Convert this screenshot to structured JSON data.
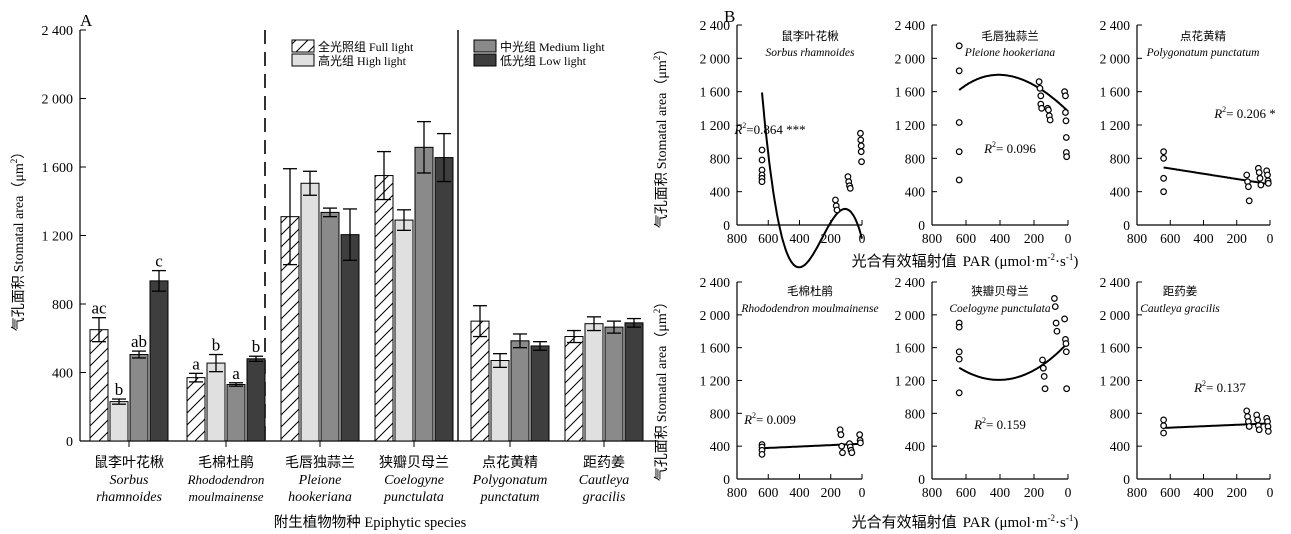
{
  "panel_a": {
    "letter": "A",
    "ylabel_cn": "气孔面积",
    "ylabel_en": "Stomatal area",
    "ylabel_unit": "（μm",
    "ylabel_unit_sup": "2",
    "ylabel_unit_close": "）",
    "xlabel": "附生植物物种 Epiphytic species",
    "yticks": [
      "0",
      "400",
      "800",
      "1 200",
      "1 600",
      "2 000",
      "2 400"
    ],
    "legend": {
      "full": "全光照组 Full light",
      "high": "高光组 High light",
      "medium": "中光组 Medium light",
      "low": "低光组 Low light"
    },
    "species": [
      {
        "cn": "鼠李叶花楸",
        "latin1": "Sorbus",
        "latin2": "rhamnoides"
      },
      {
        "cn": "毛棉杜鹃",
        "latin1": "Rhododendron",
        "latin2": "moulmainense"
      },
      {
        "cn": "毛唇独蒜兰",
        "latin1": "Pleione",
        "latin2": "hookeriana"
      },
      {
        "cn": "狭瓣贝母兰",
        "latin1": "Coelogyne",
        "latin2": "punctulata"
      },
      {
        "cn": "点花黄精",
        "latin1": "Polygonatum",
        "latin2": "punctatum"
      },
      {
        "cn": "距药姜",
        "latin1": "Cautleya",
        "latin2": "gracilis"
      }
    ],
    "sig_letters": [
      [
        "ac",
        "b",
        "ab",
        "c"
      ],
      [
        "a",
        "b",
        "a",
        "b"
      ]
    ]
  },
  "panel_b": {
    "letter": "B",
    "ylabel_cn": "气孔面积",
    "ylabel_en": "Stomatal area",
    "ylabel_unit": "（μm",
    "ylabel_unit_sup": "2",
    "ylabel_unit_close": "）",
    "xlabel_cn": "光合有效辐射值",
    "xlabel_en": "PAR",
    "xlabel_unit": "(μmol·m",
    "xlabel_sup1": "-2",
    "xlabel_mid": "·s",
    "xlabel_sup2": "-1",
    "xlabel_close": ")",
    "xticks": [
      "800",
      "600",
      "400",
      "200",
      "0"
    ],
    "yticks": [
      "0",
      "400",
      "800",
      "1 200",
      "1 600",
      "2 000",
      "2 400"
    ],
    "panels": [
      {
        "cn": "鼠李叶花楸",
        "latin": "Sorbus rhamnoides",
        "r2": "=0.864 ***"
      },
      {
        "cn": "毛唇独蒜兰",
        "latin": "Pleione hookeriana",
        "r2": "= 0.096"
      },
      {
        "cn": "点花黄精",
        "latin": "Polygonatum punctatum",
        "r2": "= 0.206 *"
      },
      {
        "cn": "毛棉杜鹃",
        "latin": "Rhododendron moulmainense",
        "r2": "= 0.009"
      },
      {
        "cn": "狭瓣贝母兰",
        "latin": "Coelogyne punctulata",
        "r2": "= 0.159"
      },
      {
        "cn": "距药姜",
        "latin": "Cautleya gracilis",
        "r2": "= 0.137"
      }
    ]
  },
  "chart_data": [
    {
      "type": "bar",
      "ylim": [
        0,
        2400
      ],
      "categories": [
        "鼠李叶花楸 Sorbus rhamnoides",
        "毛棉杜鹃 Rhododendron moulmainense",
        "毛唇独蒜兰 Pleione hookeriana",
        "狭瓣贝母兰 Coelogyne punctulata",
        "点花黄精 Polygonatum punctatum",
        "距药姜 Cautleya gracilis"
      ],
      "series": [
        {
          "name": "全光照组 Full light",
          "values": [
            650,
            370,
            1310,
            1550,
            700,
            610
          ],
          "errors": [
            70,
            25,
            280,
            140,
            90,
            35
          ]
        },
        {
          "name": "高光组 High light",
          "values": [
            230,
            455,
            1505,
            1290,
            470,
            685
          ],
          "errors": [
            15,
            50,
            70,
            60,
            40,
            40
          ]
        },
        {
          "name": "中光组 Medium light",
          "values": [
            505,
            330,
            1335,
            1715,
            585,
            665
          ],
          "errors": [
            20,
            10,
            25,
            150,
            40,
            35
          ]
        },
        {
          "name": "低光组 Low light",
          "values": [
            935,
            480,
            1205,
            1655,
            555,
            690
          ],
          "errors": [
            60,
            15,
            150,
            140,
            25,
            25
          ]
        }
      ]
    },
    {
      "type": "scatter",
      "xlim": [
        800,
        0
      ],
      "ylim": [
        0,
        2400
      ],
      "points": [
        [
          640,
          900
        ],
        [
          640,
          780
        ],
        [
          640,
          660
        ],
        [
          640,
          600
        ],
        [
          640,
          560
        ],
        [
          640,
          520
        ],
        [
          170,
          300
        ],
        [
          165,
          230
        ],
        [
          160,
          180
        ],
        [
          90,
          580
        ],
        [
          85,
          520
        ],
        [
          80,
          470
        ],
        [
          75,
          440
        ],
        [
          10,
          1100
        ],
        [
          8,
          1020
        ],
        [
          5,
          950
        ],
        [
          5,
          880
        ],
        [
          3,
          760
        ]
      ],
      "fit": {
        "coef": [
          -163.63,
          7.2133,
          -0.04217,
          5.497e-05
        ],
        "r2": 0.864
      }
    },
    {
      "type": "scatter",
      "xlim": [
        800,
        0
      ],
      "ylim": [
        0,
        2400
      ],
      "points": [
        [
          640,
          2150
        ],
        [
          640,
          1850
        ],
        [
          640,
          1230
        ],
        [
          640,
          880
        ],
        [
          640,
          540
        ],
        [
          170,
          1720
        ],
        [
          165,
          1640
        ],
        [
          160,
          1550
        ],
        [
          160,
          1450
        ],
        [
          155,
          1400
        ],
        [
          120,
          1400
        ],
        [
          115,
          1380
        ],
        [
          110,
          1310
        ],
        [
          105,
          1260
        ],
        [
          20,
          1600
        ],
        [
          15,
          1550
        ],
        [
          15,
          1350
        ],
        [
          12,
          1250
        ],
        [
          10,
          1050
        ],
        [
          10,
          870
        ],
        [
          8,
          820
        ]
      ],
      "fit": {
        "coef": [
          1364.6,
          1.95,
          -0.00167,
          -1.18e-06
        ],
        "r2": 0.096
      }
    },
    {
      "type": "scatter",
      "xlim": [
        800,
        0
      ],
      "ylim": [
        0,
        2400
      ],
      "points": [
        [
          640,
          880
        ],
        [
          640,
          800
        ],
        [
          640,
          560
        ],
        [
          640,
          400
        ],
        [
          140,
          600
        ],
        [
          135,
          520
        ],
        [
          130,
          460
        ],
        [
          125,
          290
        ],
        [
          70,
          680
        ],
        [
          65,
          630
        ],
        [
          60,
          560
        ],
        [
          55,
          480
        ],
        [
          20,
          650
        ],
        [
          15,
          600
        ],
        [
          12,
          530
        ],
        [
          10,
          500
        ]
      ],
      "fit": {
        "coef": [
          489.05,
          0.3149,
          0,
          0
        ],
        "r2": 0.206
      }
    },
    {
      "type": "scatter",
      "xlim": [
        800,
        0
      ],
      "ylim": [
        0,
        2400
      ],
      "points": [
        [
          640,
          420
        ],
        [
          640,
          390
        ],
        [
          640,
          350
        ],
        [
          640,
          300
        ],
        [
          140,
          600
        ],
        [
          135,
          540
        ],
        [
          130,
          400
        ],
        [
          125,
          320
        ],
        [
          80,
          430
        ],
        [
          75,
          390
        ],
        [
          70,
          350
        ],
        [
          65,
          320
        ],
        [
          15,
          540
        ],
        [
          12,
          470
        ],
        [
          10,
          440
        ]
      ],
      "fit": {
        "coef": [
          430,
          -0.086,
          0,
          0
        ],
        "r2": 0.009
      }
    },
    {
      "type": "scatter",
      "xlim": [
        800,
        0
      ],
      "ylim": [
        0,
        2400
      ],
      "points": [
        [
          640,
          1900
        ],
        [
          640,
          1850
        ],
        [
          640,
          1550
        ],
        [
          640,
          1460
        ],
        [
          640,
          1050
        ],
        [
          150,
          1450
        ],
        [
          145,
          1350
        ],
        [
          140,
          1250
        ],
        [
          135,
          1100
        ],
        [
          80,
          2200
        ],
        [
          75,
          2100
        ],
        [
          70,
          1900
        ],
        [
          65,
          1800
        ],
        [
          20,
          1950
        ],
        [
          15,
          1700
        ],
        [
          12,
          1650
        ],
        [
          10,
          1550
        ],
        [
          8,
          1100
        ]
      ],
      "fit": {
        "coef": [
          1663.3,
          -2.24,
          0.00275,
          0
        ],
        "r2": 0.159
      }
    },
    {
      "type": "scatter",
      "xlim": [
        800,
        0
      ],
      "ylim": [
        0,
        2400
      ],
      "points": [
        [
          640,
          720
        ],
        [
          640,
          650
        ],
        [
          640,
          560
        ],
        [
          140,
          830
        ],
        [
          135,
          760
        ],
        [
          130,
          700
        ],
        [
          125,
          640
        ],
        [
          80,
          780
        ],
        [
          75,
          720
        ],
        [
          70,
          650
        ],
        [
          65,
          600
        ],
        [
          20,
          740
        ],
        [
          15,
          700
        ],
        [
          12,
          640
        ],
        [
          10,
          580
        ]
      ],
      "fit": {
        "coef": [
          677.9,
          -0.0869,
          0,
          0
        ],
        "r2": 0.137
      }
    }
  ]
}
